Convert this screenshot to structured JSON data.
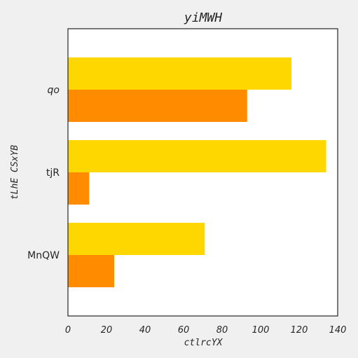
{
  "chart_data": {
    "type": "bar",
    "orientation": "horizontal",
    "title": "yiMWH",
    "xlabel": "ctlrcYX",
    "ylabel": "tLhE CSxYB",
    "categories": [
      "qo",
      "tjR",
      "MnQW"
    ],
    "category_styles": [
      "italic",
      "normal",
      "normal"
    ],
    "series": [
      {
        "values": [
          116,
          134,
          71
        ],
        "color": "#FFD700"
      },
      {
        "values": [
          93,
          11,
          24
        ],
        "color": "#FF8C00"
      }
    ],
    "xlim": [
      0,
      140
    ],
    "xticks": [
      0,
      20,
      40,
      60,
      80,
      100,
      120,
      140
    ],
    "grid": false,
    "legend": "none"
  }
}
